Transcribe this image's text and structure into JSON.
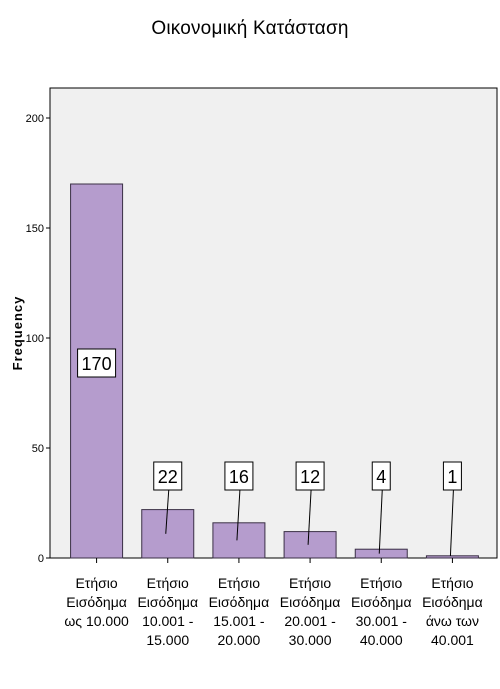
{
  "chart_data": {
    "type": "bar",
    "title": "Οικονομική Κατάσταση",
    "xlabel": "",
    "ylabel": "Frequency",
    "ylim": [
      0,
      205
    ],
    "yticks": [
      0,
      50,
      100,
      150,
      200
    ],
    "categories": [
      [
        "Ετήσιο",
        "Εισόδημα",
        "ως 10.000"
      ],
      [
        "Ετήσιο",
        "Εισόδημα",
        "10.001 -",
        "15.000"
      ],
      [
        "Ετήσιο",
        "Εισόδημα",
        "15.001 -",
        "20.000"
      ],
      [
        "Ετήσιο",
        "Εισόδημα",
        "20.001 -",
        "30.000"
      ],
      [
        "Ετήσιο",
        "Εισόδημα",
        "30.001 -",
        "40.000"
      ],
      [
        "Ετήσιο",
        "Εισόδημα",
        "άνω των",
        "40.001"
      ]
    ],
    "values": [
      170,
      22,
      16,
      12,
      4,
      1
    ],
    "data_labels": [
      "170",
      "22",
      "16",
      "12",
      "4",
      "1"
    ],
    "grid": false,
    "legend": "none",
    "colors": {
      "bar_fill": "#b59ccd",
      "bar_stroke": "#3a2f45",
      "plot_background": "#f0f0f0",
      "plot_border": "#000000"
    }
  }
}
